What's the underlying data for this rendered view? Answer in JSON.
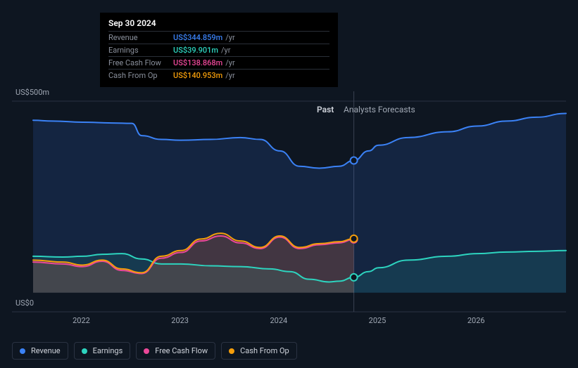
{
  "chart": {
    "type": "area",
    "background_color": "#0e1621",
    "grid_color": "#2a3242",
    "divider_color": "#3a4252",
    "y_axis": {
      "labels": [
        {
          "text": "US$500m",
          "value": 500
        },
        {
          "text": "US$0",
          "value": 0
        }
      ],
      "min": -50,
      "max": 500,
      "label_fontsize": 11
    },
    "x_axis": {
      "labels": [
        "2022",
        "2023",
        "2024",
        "2025",
        "2026"
      ],
      "min": 2021.5,
      "max": 2026.9,
      "label_fontsize": 11
    },
    "divider_x": 2024.75,
    "sections": {
      "past": "Past",
      "forecast": "Analysts Forecasts"
    },
    "cursor_x": 2024.75,
    "series": [
      {
        "id": "revenue",
        "label": "Revenue",
        "color": "#3b82f6",
        "fill": "rgba(59,130,246,0.15)",
        "line_width": 2,
        "points": [
          [
            2021.5,
            450
          ],
          [
            2021.7,
            448
          ],
          [
            2022.0,
            445
          ],
          [
            2022.3,
            443
          ],
          [
            2022.5,
            442
          ],
          [
            2022.6,
            410
          ],
          [
            2022.8,
            400
          ],
          [
            2023.0,
            398
          ],
          [
            2023.3,
            400
          ],
          [
            2023.6,
            405
          ],
          [
            2023.8,
            400
          ],
          [
            2024.0,
            370
          ],
          [
            2024.2,
            330
          ],
          [
            2024.4,
            325
          ],
          [
            2024.6,
            330
          ],
          [
            2024.75,
            345
          ],
          [
            2024.9,
            370
          ],
          [
            2025.0,
            385
          ],
          [
            2025.3,
            405
          ],
          [
            2025.7,
            420
          ],
          [
            2026.0,
            435
          ],
          [
            2026.3,
            448
          ],
          [
            2026.6,
            458
          ],
          [
            2026.9,
            468
          ]
        ],
        "marker_at": 2024.75,
        "marker_value": 345
      },
      {
        "id": "earnings",
        "label": "Earnings",
        "color": "#2dd4bf",
        "fill": "rgba(45,212,191,0.12)",
        "line_width": 2,
        "points": [
          [
            2021.5,
            95
          ],
          [
            2021.8,
            93
          ],
          [
            2022.0,
            95
          ],
          [
            2022.2,
            100
          ],
          [
            2022.4,
            102
          ],
          [
            2022.6,
            88
          ],
          [
            2022.8,
            75
          ],
          [
            2023.0,
            75
          ],
          [
            2023.3,
            70
          ],
          [
            2023.6,
            68
          ],
          [
            2023.9,
            62
          ],
          [
            2024.1,
            55
          ],
          [
            2024.3,
            35
          ],
          [
            2024.5,
            28
          ],
          [
            2024.6,
            30
          ],
          [
            2024.75,
            40
          ],
          [
            2024.9,
            55
          ],
          [
            2025.0,
            65
          ],
          [
            2025.3,
            85
          ],
          [
            2025.7,
            95
          ],
          [
            2026.0,
            102
          ],
          [
            2026.3,
            106
          ],
          [
            2026.6,
            108
          ],
          [
            2026.9,
            110
          ]
        ],
        "marker_at": 2024.75,
        "marker_value": 40
      },
      {
        "id": "fcf",
        "label": "Free Cash Flow",
        "color": "#ec4899",
        "fill": "rgba(236,72,153,0.10)",
        "line_width": 2,
        "points": [
          [
            2021.5,
            80
          ],
          [
            2021.8,
            75
          ],
          [
            2022.0,
            68
          ],
          [
            2022.2,
            82
          ],
          [
            2022.4,
            58
          ],
          [
            2022.6,
            50
          ],
          [
            2022.8,
            90
          ],
          [
            2023.0,
            105
          ],
          [
            2023.2,
            135
          ],
          [
            2023.4,
            148
          ],
          [
            2023.6,
            130
          ],
          [
            2023.8,
            115
          ],
          [
            2024.0,
            145
          ],
          [
            2024.2,
            115
          ],
          [
            2024.4,
            125
          ],
          [
            2024.6,
            130
          ],
          [
            2024.75,
            139
          ]
        ],
        "marker_at": 2024.75,
        "marker_value": 139
      },
      {
        "id": "cfo",
        "label": "Cash From Op",
        "color": "#f59e0b",
        "fill": "rgba(245,158,11,0.12)",
        "line_width": 2,
        "points": [
          [
            2021.5,
            85
          ],
          [
            2021.8,
            80
          ],
          [
            2022.0,
            72
          ],
          [
            2022.2,
            85
          ],
          [
            2022.4,
            62
          ],
          [
            2022.6,
            52
          ],
          [
            2022.8,
            95
          ],
          [
            2023.0,
            110
          ],
          [
            2023.2,
            140
          ],
          [
            2023.4,
            155
          ],
          [
            2023.6,
            135
          ],
          [
            2023.8,
            118
          ],
          [
            2024.0,
            148
          ],
          [
            2024.2,
            118
          ],
          [
            2024.4,
            128
          ],
          [
            2024.6,
            133
          ],
          [
            2024.75,
            141
          ]
        ],
        "marker_at": 2024.75,
        "marker_value": 141
      }
    ]
  },
  "tooltip": {
    "date": "Sep 30 2024",
    "rows": [
      {
        "label": "Revenue",
        "value": "US$344.859m",
        "color": "#3b82f6",
        "suffix": "/yr"
      },
      {
        "label": "Earnings",
        "value": "US$39.901m",
        "color": "#2dd4bf",
        "suffix": "/yr"
      },
      {
        "label": "Free Cash Flow",
        "value": "US$138.868m",
        "color": "#ec4899",
        "suffix": "/yr"
      },
      {
        "label": "Cash From Op",
        "value": "US$140.953m",
        "color": "#f59e0b",
        "suffix": "/yr"
      }
    ]
  },
  "legend": [
    {
      "id": "revenue",
      "label": "Revenue",
      "color": "#3b82f6"
    },
    {
      "id": "earnings",
      "label": "Earnings",
      "color": "#2dd4bf"
    },
    {
      "id": "fcf",
      "label": "Free Cash Flow",
      "color": "#ec4899"
    },
    {
      "id": "cfo",
      "label": "Cash From Op",
      "color": "#f59e0b"
    }
  ]
}
